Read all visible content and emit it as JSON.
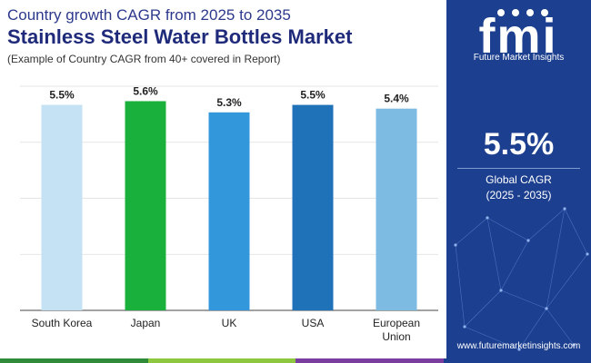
{
  "header": {
    "subtitle": "Country growth CAGR from 2025 to 2035",
    "title": "Stainless Steel Water Bottles Market",
    "note": "(Example of Country CAGR from 40+ covered in Report)"
  },
  "chart_data": {
    "type": "bar",
    "title": "Stainless Steel Water Bottles Market",
    "categories": [
      "South Korea",
      "Japan",
      "UK",
      "USA",
      "European Union"
    ],
    "values": [
      5.5,
      5.6,
      5.3,
      5.5,
      5.4
    ],
    "value_labels": [
      "5.5%",
      "5.6%",
      "5.3%",
      "5.5%",
      "5.4%"
    ],
    "ylim": [
      0,
      6
    ],
    "grid": true,
    "xlabel": "",
    "ylabel": "",
    "colors": [
      "#c5e2f5",
      "#1ab03c",
      "#3398db",
      "#1f72b8",
      "#7dbbe3"
    ]
  },
  "sidebar": {
    "logo_letters": "fmi",
    "logo_text": "Future Market Insights",
    "global_value": "5.5%",
    "global_label": "Global CAGR",
    "global_period": "(2025 - 2035)",
    "website": "www.futuremarketinsights.com",
    "background": "#1c3f8f"
  },
  "footer_colors": [
    "#2f8a3a",
    "#8dc63f",
    "#7a3ea0",
    "#1c3f8f"
  ]
}
